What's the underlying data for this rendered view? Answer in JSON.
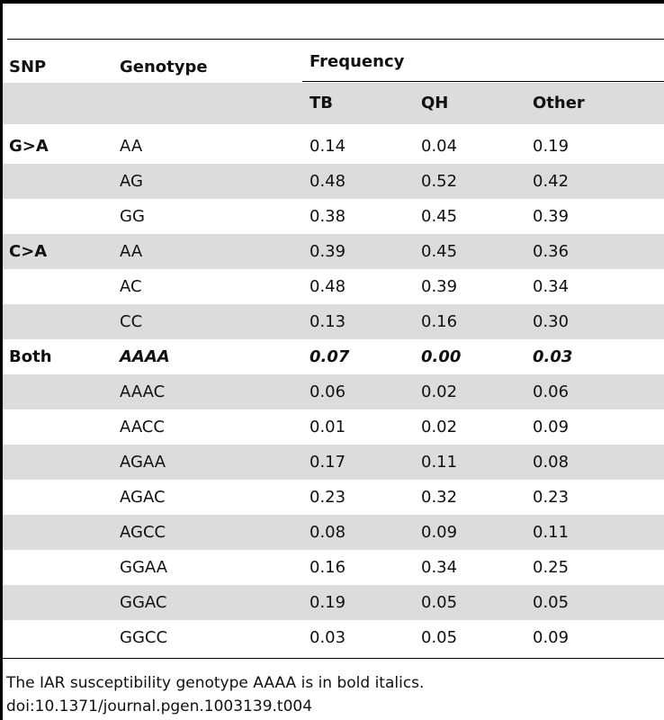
{
  "header": {
    "snp": "SNP",
    "genotype": "Genotype",
    "frequency": "Frequency",
    "tb": "TB",
    "qh": "QH",
    "other": "Other"
  },
  "rows": [
    {
      "snp": "G>A",
      "genotype": "AA",
      "tb": "0.14",
      "qh": "0.04",
      "other": "0.19"
    },
    {
      "snp": "",
      "genotype": "AG",
      "tb": "0.48",
      "qh": "0.52",
      "other": "0.42"
    },
    {
      "snp": "",
      "genotype": "GG",
      "tb": "0.38",
      "qh": "0.45",
      "other": "0.39"
    },
    {
      "snp": "C>A",
      "genotype": "AA",
      "tb": "0.39",
      "qh": "0.45",
      "other": "0.36"
    },
    {
      "snp": "",
      "genotype": "AC",
      "tb": "0.48",
      "qh": "0.39",
      "other": "0.34"
    },
    {
      "snp": "",
      "genotype": "CC",
      "tb": "0.13",
      "qh": "0.16",
      "other": "0.30"
    },
    {
      "snp": "Both",
      "genotype": "AAAA",
      "tb": "0.07",
      "qh": "0.00",
      "other": "0.03"
    },
    {
      "snp": "",
      "genotype": "AAAC",
      "tb": "0.06",
      "qh": "0.02",
      "other": "0.06"
    },
    {
      "snp": "",
      "genotype": "AACC",
      "tb": "0.01",
      "qh": "0.02",
      "other": "0.09"
    },
    {
      "snp": "",
      "genotype": "AGAA",
      "tb": "0.17",
      "qh": "0.11",
      "other": "0.08"
    },
    {
      "snp": "",
      "genotype": "AGAC",
      "tb": "0.23",
      "qh": "0.32",
      "other": "0.23"
    },
    {
      "snp": "",
      "genotype": "AGCC",
      "tb": "0.08",
      "qh": "0.09",
      "other": "0.11"
    },
    {
      "snp": "",
      "genotype": "GGAA",
      "tb": "0.16",
      "qh": "0.34",
      "other": "0.25"
    },
    {
      "snp": "",
      "genotype": "GGAC",
      "tb": "0.19",
      "qh": "0.05",
      "other": "0.05"
    },
    {
      "snp": "",
      "genotype": "GGCC",
      "tb": "0.03",
      "qh": "0.05",
      "other": "0.09"
    }
  ],
  "footnote": "The IAR susceptibility genotype AAAA is in bold italics.",
  "doi": "doi:10.1371/journal.pgen.1003139.t004"
}
